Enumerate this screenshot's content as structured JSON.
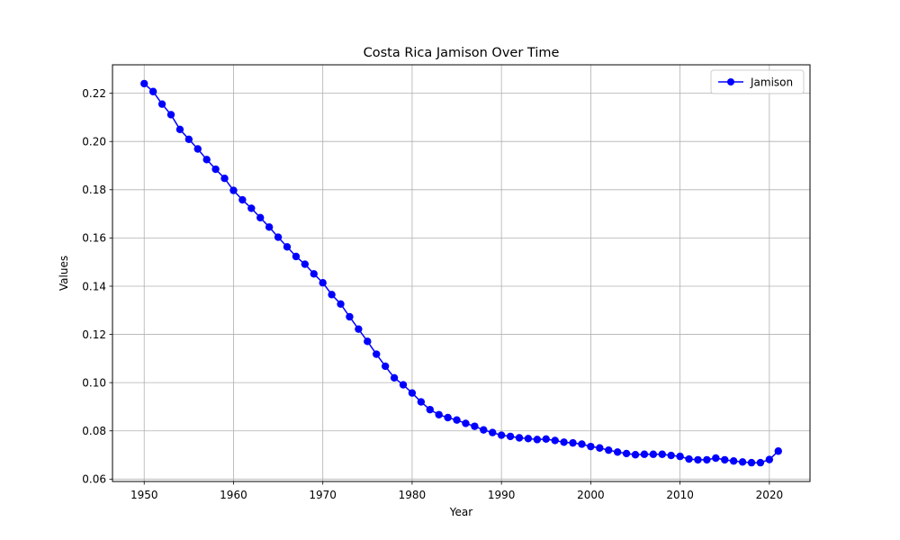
{
  "chart_data": {
    "type": "line",
    "title": "Costa Rica Jamison Over Time",
    "xlabel": "Year",
    "ylabel": "Values",
    "xlim": [
      1946.45,
      2024.55
    ],
    "ylim": [
      0.059,
      0.2318
    ],
    "xticks": [
      1950,
      1960,
      1970,
      1980,
      1990,
      2000,
      2010,
      2020
    ],
    "yticks": [
      0.06,
      0.08,
      0.1,
      0.12,
      0.14,
      0.16,
      0.18,
      0.2,
      0.22
    ],
    "ytick_labels": [
      "0.06",
      "0.08",
      "0.10",
      "0.12",
      "0.14",
      "0.16",
      "0.18",
      "0.20",
      "0.22"
    ],
    "grid": true,
    "legend_position": "upper right",
    "series": [
      {
        "name": "Jamison",
        "color": "#0000ff",
        "marker": "circle",
        "x": [
          1950,
          1951,
          1952,
          1953,
          1954,
          1955,
          1956,
          1957,
          1958,
          1959,
          1960,
          1961,
          1962,
          1963,
          1964,
          1965,
          1966,
          1967,
          1968,
          1969,
          1970,
          1971,
          1972,
          1973,
          1974,
          1975,
          1976,
          1977,
          1978,
          1979,
          1980,
          1981,
          1982,
          1983,
          1984,
          1985,
          1986,
          1987,
          1988,
          1989,
          1990,
          1991,
          1992,
          1993,
          1994,
          1995,
          1996,
          1997,
          1998,
          1999,
          2000,
          2001,
          2002,
          2003,
          2004,
          2005,
          2006,
          2007,
          2008,
          2009,
          2010,
          2011,
          2012,
          2013,
          2014,
          2015,
          2016,
          2017,
          2018,
          2019,
          2020,
          2021
        ],
        "values": [
          0.224,
          0.2207,
          0.2155,
          0.2111,
          0.205,
          0.2009,
          0.1969,
          0.1925,
          0.1885,
          0.1847,
          0.1797,
          0.1758,
          0.1723,
          0.1684,
          0.1645,
          0.1603,
          0.1563,
          0.1523,
          0.1491,
          0.1451,
          0.1414,
          0.1365,
          0.1326,
          0.1273,
          0.1222,
          0.1171,
          0.1118,
          0.1068,
          0.102,
          0.0991,
          0.0957,
          0.092,
          0.0888,
          0.0867,
          0.0855,
          0.0845,
          0.0831,
          0.0819,
          0.0804,
          0.0793,
          0.0782,
          0.0777,
          0.0771,
          0.0768,
          0.0764,
          0.0766,
          0.076,
          0.0753,
          0.075,
          0.0745,
          0.0735,
          0.0729,
          0.072,
          0.0712,
          0.0706,
          0.0701,
          0.0703,
          0.0703,
          0.0703,
          0.0698,
          0.0694,
          0.0683,
          0.068,
          0.068,
          0.0687,
          0.068,
          0.0675,
          0.0671,
          0.0668,
          0.0668,
          0.0681,
          0.0716
        ]
      }
    ]
  }
}
